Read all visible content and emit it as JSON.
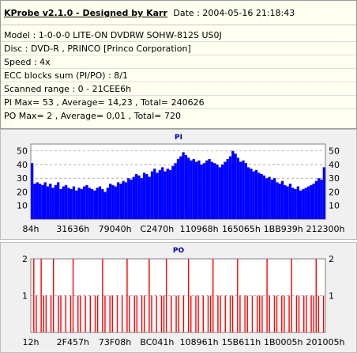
{
  "info": {
    "title": "KProbe v2.1.0 - Designed by Karr",
    "date": "Date : 2004-05-16 21:18:43",
    "model": "Model : 1-0-0-0 LITE-ON DVDRW SOHW-812S  US0J",
    "disc": "Disc : DVD-R , PRINCO [Princo Corporation]",
    "speed": "Speed : 4x",
    "ecc": "ECC blocks sum (PI/PO) : 8/1",
    "range": "Scanned range : 0 - 21CEE6h",
    "pi_stats": "PI Max= 53 , Average= 14,23 , Total= 240626",
    "po_stats": "PO Max= 2 , Average= 0,01 , Total= 720"
  },
  "colors": {
    "pi_bar": "#0000ff",
    "po_bar": "#ff0000",
    "grid": "#808080",
    "plot_bg": "#ffffff"
  },
  "chart_data": [
    {
      "type": "bar",
      "title": "PI",
      "ylim": [
        0,
        55
      ],
      "yticks": [
        10,
        20,
        30,
        40,
        50
      ],
      "xticks": [
        "84h",
        "31636h",
        "79040h",
        "C2470h",
        "110968h",
        "165065h",
        "1BB939h",
        "212300h"
      ],
      "grid": true,
      "series": [
        {
          "values": [
            41,
            26,
            27,
            26,
            25,
            27,
            24,
            26,
            23,
            25,
            27,
            22,
            24,
            25,
            23,
            22,
            24,
            21,
            23,
            22,
            24,
            25,
            23,
            22,
            21,
            23,
            24,
            22,
            20,
            23,
            26,
            25,
            24,
            27,
            26,
            28,
            27,
            30,
            29,
            31,
            33,
            32,
            30,
            34,
            33,
            31,
            35,
            37,
            34,
            36,
            38,
            35,
            37,
            36,
            39,
            41,
            44,
            46,
            49,
            47,
            45,
            43,
            44,
            42,
            43,
            40,
            41,
            43,
            44,
            42,
            41,
            40,
            38,
            40,
            42,
            44,
            46,
            50,
            48,
            45,
            42,
            43,
            41,
            38,
            37,
            35,
            36,
            34,
            33,
            32,
            30,
            31,
            29,
            30,
            27,
            26,
            28,
            25,
            24,
            26,
            23,
            22,
            24,
            21,
            22,
            23,
            24,
            25,
            26,
            28,
            30,
            29,
            38
          ]
        }
      ]
    },
    {
      "type": "bar",
      "title": "PO",
      "ylim": [
        0,
        2
      ],
      "yticks": [
        1,
        2
      ],
      "xticks": [
        "12h",
        "2F457h",
        "73F08h",
        "BC041h",
        "108961h",
        "15B611h",
        "1B0005h",
        "201005h"
      ],
      "grid": true,
      "series": [
        {
          "values": [
            0,
            2,
            1,
            0,
            2,
            1,
            1,
            0,
            1,
            2,
            0,
            1,
            1,
            0,
            1,
            0,
            1,
            2,
            0,
            1,
            1,
            0,
            1,
            0,
            1,
            0,
            1,
            1,
            0,
            2,
            1,
            0,
            1,
            1,
            0,
            1,
            0,
            1,
            0,
            2,
            1,
            0,
            1,
            1,
            0,
            1,
            1,
            0,
            2,
            1,
            0,
            1,
            0,
            1,
            1,
            2,
            0,
            1,
            0,
            1,
            1,
            0,
            1,
            0,
            2,
            1,
            0,
            1,
            1,
            0,
            1,
            0,
            1,
            1,
            2,
            0,
            1,
            1,
            0,
            1,
            0,
            1,
            1,
            0,
            2,
            1,
            0,
            1,
            1,
            0,
            1,
            0,
            1,
            1,
            1,
            0,
            2,
            1,
            0,
            1,
            1,
            0,
            1,
            1,
            0,
            1,
            2,
            0,
            1,
            1,
            0,
            1,
            1,
            0,
            1,
            1,
            2,
            1,
            0,
            1
          ]
        }
      ]
    }
  ]
}
